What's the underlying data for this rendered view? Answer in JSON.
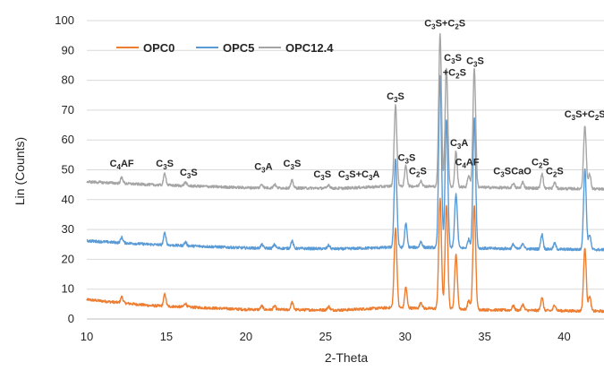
{
  "chart_data": {
    "type": "line",
    "xlabel": "2-Theta",
    "ylabel": "Lin (Counts)",
    "xlim": [
      10,
      42.5
    ],
    "ylim": [
      0,
      100
    ],
    "x_ticks": [
      10,
      15,
      20,
      25,
      30,
      35,
      40
    ],
    "y_ticks": [
      0,
      10,
      20,
      30,
      40,
      50,
      60,
      70,
      80,
      90,
      100
    ],
    "grid": "horizontal",
    "legend_position": "top-left",
    "series": [
      {
        "name": "OPC0",
        "color": "#ED7D31",
        "baseline": [
          [
            10,
            6.5
          ],
          [
            14,
            4.5
          ],
          [
            20,
            3.2
          ],
          [
            26,
            3.0
          ],
          [
            29,
            3.8
          ],
          [
            31,
            3.6
          ],
          [
            36,
            3.0
          ],
          [
            42.5,
            2.6
          ]
        ],
        "peaks": [
          [
            12.2,
            2
          ],
          [
            14.9,
            4
          ],
          [
            16.2,
            1.2
          ],
          [
            21.0,
            1.2
          ],
          [
            21.8,
            1.2
          ],
          [
            22.9,
            2.5
          ],
          [
            25.2,
            1.2
          ],
          [
            29.4,
            27
          ],
          [
            30.05,
            7
          ],
          [
            31.0,
            2
          ],
          [
            32.2,
            37
          ],
          [
            32.6,
            35
          ],
          [
            33.2,
            18
          ],
          [
            34.0,
            3
          ],
          [
            34.35,
            35
          ],
          [
            36.8,
            1.5
          ],
          [
            37.4,
            2
          ],
          [
            38.6,
            4.5
          ],
          [
            39.4,
            2
          ],
          [
            41.3,
            21
          ],
          [
            41.6,
            5
          ]
        ]
      },
      {
        "name": "OPC5",
        "color": "#5B9BD5",
        "baseline": [
          [
            10,
            26.2
          ],
          [
            14,
            25.0
          ],
          [
            20,
            23.8
          ],
          [
            26,
            23.5
          ],
          [
            29,
            24.0
          ],
          [
            31,
            24.0
          ],
          [
            36,
            23.6
          ],
          [
            42.5,
            23.2
          ]
        ],
        "peaks": [
          [
            12.2,
            1.8
          ],
          [
            14.9,
            4
          ],
          [
            16.2,
            1.2
          ],
          [
            21.0,
            1.2
          ],
          [
            21.8,
            1.2
          ],
          [
            22.9,
            2.5
          ],
          [
            25.2,
            1.2
          ],
          [
            29.4,
            30
          ],
          [
            30.05,
            8
          ],
          [
            31.0,
            2
          ],
          [
            32.2,
            58
          ],
          [
            32.6,
            43
          ],
          [
            33.2,
            18
          ],
          [
            34.0,
            3
          ],
          [
            34.35,
            44
          ],
          [
            36.8,
            1.5
          ],
          [
            37.4,
            2
          ],
          [
            38.6,
            5
          ],
          [
            39.4,
            2
          ],
          [
            41.3,
            27
          ],
          [
            41.6,
            5
          ]
        ]
      },
      {
        "name": "OPC12.4",
        "color": "#A5A5A5",
        "baseline": [
          [
            10,
            46.0
          ],
          [
            14,
            45.0
          ],
          [
            20,
            44.0
          ],
          [
            26,
            43.8
          ],
          [
            29,
            44.5
          ],
          [
            31,
            44.5
          ],
          [
            36,
            44.0
          ],
          [
            42.5,
            43.5
          ]
        ],
        "peaks": [
          [
            12.2,
            2
          ],
          [
            14.9,
            4
          ],
          [
            16.2,
            1.2
          ],
          [
            21.0,
            1.2
          ],
          [
            21.8,
            1.2
          ],
          [
            22.9,
            2.5
          ],
          [
            25.2,
            1.2
          ],
          [
            29.4,
            27
          ],
          [
            30.05,
            7
          ],
          [
            31.0,
            2
          ],
          [
            32.2,
            51
          ],
          [
            32.6,
            40
          ],
          [
            33.2,
            12
          ],
          [
            34.0,
            4
          ],
          [
            34.35,
            40
          ],
          [
            36.8,
            1.5
          ],
          [
            37.4,
            2
          ],
          [
            38.6,
            5
          ],
          [
            39.4,
            2
          ],
          [
            41.3,
            21
          ],
          [
            41.6,
            5
          ]
        ]
      }
    ],
    "annotations": [
      {
        "x": 12.2,
        "y": 51,
        "parts": [
          [
            "C",
            ""
          ],
          [
            "4",
            "sub"
          ],
          [
            "AF",
            ""
          ]
        ]
      },
      {
        "x": 14.9,
        "y": 51,
        "parts": [
          [
            "C",
            ""
          ],
          [
            "3",
            "sub"
          ],
          [
            "S",
            ""
          ]
        ]
      },
      {
        "x": 16.4,
        "y": 48,
        "parts": [
          [
            "C",
            ""
          ],
          [
            "3",
            "sub"
          ],
          [
            "S",
            ""
          ]
        ]
      },
      {
        "x": 21.1,
        "y": 50,
        "parts": [
          [
            "C",
            ""
          ],
          [
            "3",
            "sub"
          ],
          [
            "A",
            ""
          ]
        ]
      },
      {
        "x": 22.9,
        "y": 51,
        "parts": [
          [
            "C",
            ""
          ],
          [
            "3",
            "sub"
          ],
          [
            "S",
            ""
          ]
        ]
      },
      {
        "x": 24.8,
        "y": 47.5,
        "parts": [
          [
            "C",
            ""
          ],
          [
            "3",
            "sub"
          ],
          [
            "S",
            ""
          ]
        ]
      },
      {
        "x": 27.1,
        "y": 47.5,
        "parts": [
          [
            "C",
            ""
          ],
          [
            "3",
            "sub"
          ],
          [
            "S+C",
            ""
          ],
          [
            "3",
            "sub"
          ],
          [
            "A",
            ""
          ]
        ]
      },
      {
        "x": 29.4,
        "y": 73.5,
        "parts": [
          [
            "C",
            ""
          ],
          [
            "3",
            "sub"
          ],
          [
            "S",
            ""
          ]
        ]
      },
      {
        "x": 30.1,
        "y": 53,
        "parts": [
          [
            "C",
            ""
          ],
          [
            "3",
            "sub"
          ],
          [
            "S",
            ""
          ]
        ]
      },
      {
        "x": 30.8,
        "y": 48.5,
        "parts": [
          [
            "C",
            ""
          ],
          [
            "2",
            "sub"
          ],
          [
            "S",
            ""
          ]
        ]
      },
      {
        "x": 32.5,
        "y": 98,
        "parts": [
          [
            "C",
            ""
          ],
          [
            "3",
            "sub"
          ],
          [
            "S+C",
            ""
          ],
          [
            "2",
            "sub"
          ],
          [
            "S",
            ""
          ]
        ]
      },
      {
        "x": 33.0,
        "y": 86.5,
        "parts": [
          [
            "C",
            ""
          ],
          [
            "3",
            "sub"
          ],
          [
            "S",
            ""
          ]
        ]
      },
      {
        "x": 33.1,
        "y": 81.5,
        "parts": [
          [
            "+C",
            ""
          ],
          [
            "2",
            "sub"
          ],
          [
            "S",
            ""
          ]
        ]
      },
      {
        "x": 34.4,
        "y": 85.5,
        "parts": [
          [
            "C",
            ""
          ],
          [
            "3",
            "sub"
          ],
          [
            "S",
            ""
          ]
        ]
      },
      {
        "x": 33.4,
        "y": 58,
        "parts": [
          [
            "C",
            ""
          ],
          [
            "3",
            "sub"
          ],
          [
            "A",
            ""
          ]
        ]
      },
      {
        "x": 33.9,
        "y": 51.5,
        "parts": [
          [
            "C",
            ""
          ],
          [
            "4",
            "sub"
          ],
          [
            "AF",
            ""
          ]
        ]
      },
      {
        "x": 36.1,
        "y": 48.5,
        "parts": [
          [
            "C",
            ""
          ],
          [
            "3",
            "sub"
          ],
          [
            "S",
            ""
          ]
        ]
      },
      {
        "x": 37.3,
        "y": 48.5,
        "parts": [
          [
            "CaO",
            ""
          ]
        ]
      },
      {
        "x": 38.5,
        "y": 51.5,
        "parts": [
          [
            "C",
            ""
          ],
          [
            "2",
            "sub"
          ],
          [
            "S",
            ""
          ]
        ]
      },
      {
        "x": 39.4,
        "y": 48.5,
        "parts": [
          [
            "C",
            ""
          ],
          [
            "2",
            "sub"
          ],
          [
            "S",
            ""
          ]
        ]
      },
      {
        "x": 41.3,
        "y": 67.5,
        "parts": [
          [
            "C",
            ""
          ],
          [
            "3",
            "sub"
          ],
          [
            "S+C",
            ""
          ],
          [
            "2",
            "sub"
          ],
          [
            "S",
            ""
          ]
        ]
      }
    ]
  }
}
